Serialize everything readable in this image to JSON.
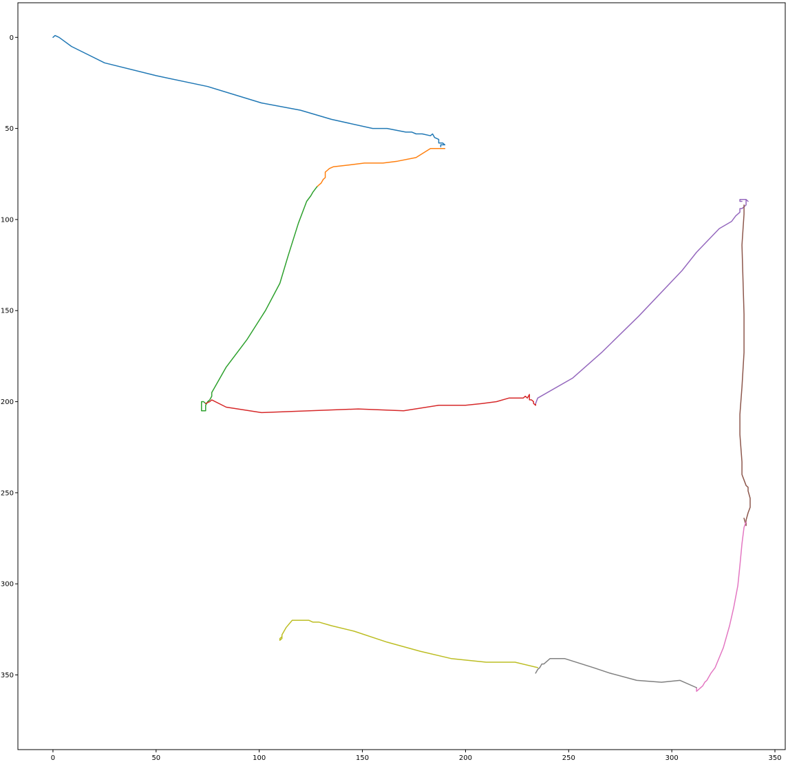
{
  "chart_data": {
    "type": "line",
    "title": "",
    "xlabel": "",
    "ylabel": "",
    "xlim": [
      -17,
      355
    ],
    "ylim": [
      -19,
      391
    ],
    "y_inverted": true,
    "grid": false,
    "legend": "none",
    "xticks": [
      0,
      50,
      100,
      150,
      200,
      250,
      300,
      350
    ],
    "yticks": [
      0,
      50,
      100,
      150,
      200,
      250,
      300,
      350
    ],
    "series": [
      {
        "color": "#1f77b4",
        "x": [
          0,
          1,
          3,
          9,
          25,
          50,
          75,
          101,
          120,
          135,
          155,
          162,
          171,
          174,
          176,
          179,
          183,
          184,
          185,
          187,
          187,
          188,
          189,
          190,
          188,
          188
        ],
        "y": [
          0,
          -1,
          0,
          5,
          14,
          21,
          27,
          36,
          40,
          45,
          50,
          50,
          52,
          52,
          53,
          53,
          54,
          53,
          55,
          56,
          58,
          58,
          58,
          59,
          59,
          60
        ]
      },
      {
        "color": "#ff7f0e",
        "x": [
          190,
          183,
          176,
          167,
          160,
          151,
          144,
          136,
          134,
          133,
          132,
          132,
          131,
          130,
          129,
          128
        ],
        "y": [
          61,
          61,
          66,
          68,
          69,
          69,
          70,
          71,
          72,
          73,
          74,
          77,
          78,
          80,
          81,
          82
        ]
      },
      {
        "color": "#2ca02c",
        "x": [
          128,
          126,
          125,
          123,
          119,
          114,
          110,
          103,
          94,
          84,
          78,
          77,
          77,
          76,
          75,
          74,
          74,
          73,
          72,
          72,
          72,
          73,
          74
        ],
        "y": [
          82,
          85,
          87,
          90,
          102,
          120,
          135,
          150,
          166,
          181,
          193,
          195,
          197,
          199,
          200,
          202,
          205,
          205,
          205,
          204,
          200,
          200,
          201
        ]
      },
      {
        "color": "#d62728",
        "x": [
          74,
          76,
          77,
          84,
          101,
          148,
          170,
          187,
          200,
          208,
          215,
          221,
          228,
          229,
          230,
          231,
          231,
          232,
          233,
          233,
          234,
          234
        ],
        "y": [
          201,
          200,
          199,
          203,
          206,
          204,
          205,
          202,
          202,
          201,
          200,
          198,
          198,
          197,
          198,
          196,
          199,
          199,
          200,
          201,
          202,
          201
        ]
      },
      {
        "color": "#9467bd",
        "x": [
          234,
          235,
          252,
          266,
          284,
          305,
          312,
          323,
          329,
          331,
          333,
          333,
          334,
          335,
          336,
          336,
          336,
          337,
          336,
          333,
          333,
          334
        ],
        "y": [
          201,
          198,
          187,
          173,
          153,
          128,
          118,
          105,
          101,
          98,
          96,
          94,
          94,
          93,
          92,
          91,
          89,
          90,
          89,
          89,
          90,
          90
        ]
      },
      {
        "color": "#8c564b",
        "x": [
          335,
          335,
          334,
          335,
          335,
          334,
          333,
          333,
          334,
          334,
          335,
          336,
          337,
          337,
          338,
          338,
          337,
          336,
          336,
          335
        ],
        "y": [
          92,
          97,
          114,
          152,
          173,
          192,
          207,
          218,
          233,
          240,
          243,
          246,
          247,
          249,
          253,
          258,
          261,
          265,
          268,
          264
        ]
      },
      {
        "color": "#e377c2",
        "x": [
          336,
          335,
          334,
          333,
          332,
          330,
          328,
          325,
          321,
          319,
          318,
          317,
          316,
          315,
          314,
          313,
          312,
          312
        ],
        "y": [
          266,
          269,
          278,
          290,
          301,
          313,
          323,
          335,
          346,
          349,
          351,
          353,
          354,
          356,
          357,
          358,
          359,
          357
        ]
      },
      {
        "color": "#7f7f7f",
        "x": [
          312,
          304,
          295,
          283,
          270,
          262,
          248,
          241,
          240,
          238,
          237,
          236,
          235,
          234
        ],
        "y": [
          357,
          353,
          354,
          353,
          349,
          346,
          341,
          341,
          342,
          344,
          344,
          346,
          347,
          349
        ]
      },
      {
        "color": "#bcbd22",
        "x": [
          235,
          224,
          210,
          193,
          178,
          162,
          146,
          135,
          129,
          127,
          126,
          124,
          118,
          116,
          113,
          112,
          111,
          111,
          110,
          110,
          111
        ],
        "y": [
          346,
          343,
          343,
          341,
          337,
          332,
          326,
          323,
          321,
          321,
          321,
          320,
          320,
          320,
          324,
          326,
          328,
          330,
          331,
          330,
          329
        ]
      }
    ]
  }
}
